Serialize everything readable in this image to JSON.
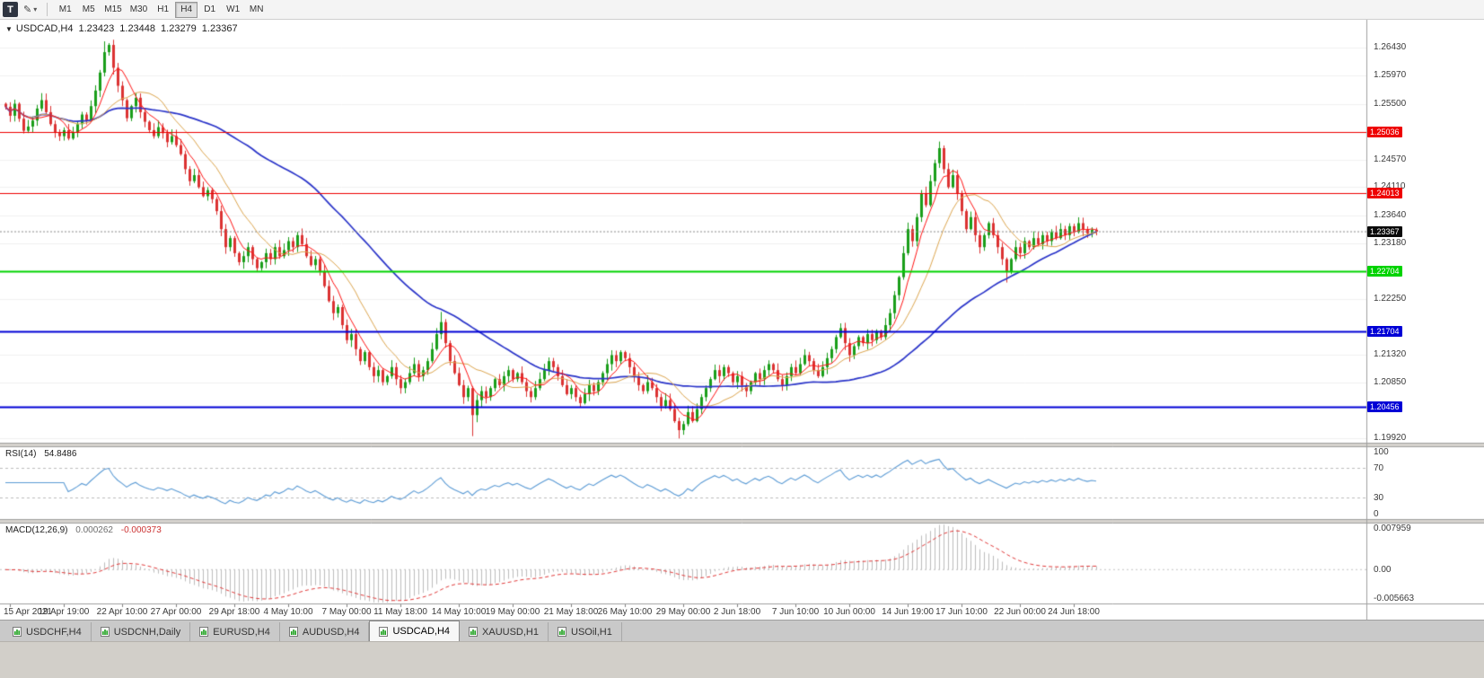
{
  "colors": {
    "bull": "#1a9e1a",
    "bear": "#db3232",
    "rsi": "#5b9bd5",
    "macd_hist": "#bdbdbd",
    "macd_signal": "#e23b3b",
    "accent_red": "#ee0000",
    "accent_green": "#00d300",
    "accent_blue": "#0000d6",
    "tag_black": "#0a0a0a"
  },
  "toolbar": {
    "window_icon": "T",
    "draw_tool_icon": "✎",
    "timeframes": [
      "M1",
      "M5",
      "M15",
      "M30",
      "H1",
      "H4",
      "D1",
      "W1",
      "MN"
    ],
    "active_timeframe": "H4"
  },
  "chart": {
    "symbol": "USDCAD,H4",
    "ohlc": {
      "open": "1.23423",
      "high": "1.23448",
      "low": "1.23279",
      "close": "1.23367"
    },
    "scale": {
      "max": 1.269,
      "min": 1.1985
    },
    "y_ticks": [
      {
        "p": 1.2643,
        "label": "1.26430"
      },
      {
        "p": 1.2597,
        "label": "1.25970"
      },
      {
        "p": 1.255,
        "label": "1.25500"
      },
      {
        "p": 1.2457,
        "label": "1.24570"
      },
      {
        "p": 1.2411,
        "label": "1.24110"
      },
      {
        "p": 1.2364,
        "label": "1.23640"
      },
      {
        "p": 1.2318,
        "label": "1.23180"
      },
      {
        "p": 1.2225,
        "label": "1.22250"
      },
      {
        "p": 1.2132,
        "label": "1.21320"
      },
      {
        "p": 1.2085,
        "label": "1.20850"
      },
      {
        "p": 1.1992,
        "label": "1.19920"
      }
    ],
    "hlines": [
      {
        "price": 1.25036,
        "label": "1.25036",
        "color": "#ee0000",
        "width": 1.2
      },
      {
        "price": 1.24013,
        "label": "1.24013",
        "color": "#ee0000",
        "width": 1.2
      },
      {
        "price": 1.22704,
        "label": "1.22704",
        "color": "#00d300",
        "width": 2
      },
      {
        "price": 1.21704,
        "label": "1.21704",
        "color": "#0000d6",
        "width": 2
      },
      {
        "price": 1.20456,
        "label": "1.20456",
        "color": "#0000d6",
        "width": 2
      }
    ],
    "current_price": {
      "price": 1.23367,
      "label": "1.23367"
    },
    "time_labels": [
      "15 Apr 2021",
      "19 Apr 19:00",
      "22 Apr 10:00",
      "27 Apr 00:00",
      "29 Apr 18:00",
      "4 May 10:00",
      "7 May 00:00",
      "11 May 18:00",
      "14 May 10:00",
      "19 May 00:00",
      "21 May 18:00",
      "26 May 10:00",
      "29 May 00:00",
      "2 Jun 18:00",
      "7 Jun 10:00",
      "10 Jun 00:00",
      "14 Jun 19:00",
      "17 Jun 10:00",
      "22 Jun 00:00",
      "24 Jun 18:00"
    ]
  },
  "rsi": {
    "label": "RSI(14)",
    "value": "54.8486",
    "period": 14,
    "levels": [
      {
        "v": 100,
        "label": "100"
      },
      {
        "v": 70,
        "label": "70",
        "dashed": true
      },
      {
        "v": 30,
        "label": "30",
        "dashed": true
      },
      {
        "v": 0,
        "label": "0"
      }
    ]
  },
  "macd": {
    "label": "MACD(12,26,9)",
    "value_main": "0.000262",
    "value_signal": "-0.000373",
    "fast": 12,
    "slow": 26,
    "signal": 9,
    "scale": {
      "max": 0.0086,
      "min": -0.0062
    },
    "axis": [
      {
        "v": 0.007959,
        "label": "0.007959"
      },
      {
        "v": 0,
        "label": "0.00"
      },
      {
        "v": -0.005663,
        "label": "-0.005663"
      }
    ]
  },
  "tabs": [
    {
      "label": "USDCHF,H4",
      "active": false
    },
    {
      "label": "USDCNH,Daily",
      "active": false
    },
    {
      "label": "EURUSD,H4",
      "active": false
    },
    {
      "label": "AUDUSD,H4",
      "active": false
    },
    {
      "label": "USDCAD,H4",
      "active": true
    },
    {
      "label": "XAUUSD,H1",
      "active": false
    },
    {
      "label": "USOil,H1",
      "active": false
    }
  ],
  "chart_data": {
    "type": "candlestick",
    "symbol": "USDCAD",
    "timeframe": "H4",
    "title": "USDCAD,H4",
    "ylim": [
      1.1985,
      1.269
    ],
    "first_open": 1.255,
    "closes": [
      1.2545,
      1.253,
      1.255,
      1.2525,
      1.2505,
      1.2512,
      1.2522,
      1.2542,
      1.2556,
      1.2536,
      1.2516,
      1.2502,
      1.2496,
      1.2506,
      1.2492,
      1.2502,
      1.2516,
      1.2532,
      1.2522,
      1.2546,
      1.2572,
      1.2602,
      1.2636,
      1.2648,
      1.261,
      1.258,
      1.2556,
      1.2526,
      1.2546,
      1.256,
      1.2536,
      1.252,
      1.2506,
      1.2496,
      1.2511,
      1.2501,
      1.2486,
      1.2496,
      1.2481,
      1.2466,
      1.2441,
      1.2421,
      1.2431,
      1.2411,
      1.2396,
      1.2406,
      1.2391,
      1.2371,
      1.2341,
      1.2311,
      1.2326,
      1.2301,
      1.2286,
      1.2296,
      1.2311,
      1.2291,
      1.2276,
      1.2286,
      1.2301,
      1.2291,
      1.2311,
      1.2296,
      1.2306,
      1.2321,
      1.2311,
      1.2331,
      1.2316,
      1.2296,
      1.2281,
      1.2291,
      1.2271,
      1.2246,
      1.2221,
      1.2201,
      1.2211,
      1.2181,
      1.2156,
      1.2166,
      1.2141,
      1.2121,
      1.2136,
      1.2111,
      1.2096,
      1.2106,
      1.2086,
      1.2096,
      1.2111,
      1.2091,
      1.2076,
      1.2086,
      1.2101,
      1.2116,
      1.2096,
      1.2106,
      1.2121,
      1.2141,
      1.2166,
      1.2186,
      1.2151,
      1.2121,
      1.2101,
      1.2081,
      1.2061,
      1.2076,
      1.2031,
      1.2056,
      1.2071,
      1.2061,
      1.2076,
      1.2091,
      1.2081,
      1.2096,
      1.2106,
      1.2091,
      1.2101,
      1.2086,
      1.2071,
      1.2061,
      1.2076,
      1.2091,
      1.2106,
      1.2121,
      1.2111,
      1.2096,
      1.2081,
      1.2066,
      1.2076,
      1.2061,
      1.2051,
      1.2066,
      1.2081,
      1.2071,
      1.2086,
      1.2101,
      1.2116,
      1.2131,
      1.2121,
      1.2136,
      1.2126,
      1.2111,
      1.2096,
      1.2081,
      1.2071,
      1.2086,
      1.2076,
      1.2061,
      1.2046,
      1.2056,
      1.2041,
      1.2021,
      1.2006,
      1.2016,
      1.2036,
      1.2021,
      1.2041,
      1.2061,
      1.2076,
      1.2091,
      1.2106,
      1.2096,
      1.2111,
      1.2101,
      1.2086,
      1.2096,
      1.2081,
      1.2071,
      1.2086,
      1.2101,
      1.2091,
      1.2106,
      1.2116,
      1.2106,
      1.2091,
      1.2081,
      1.2096,
      1.2111,
      1.2101,
      1.2116,
      1.2131,
      1.2121,
      1.2106,
      1.2096,
      1.2111,
      1.2126,
      1.2141,
      1.2161,
      1.2176,
      1.2151,
      1.2131,
      1.2146,
      1.2161,
      1.2151,
      1.2166,
      1.2156,
      1.2171,
      1.2161,
      1.2181,
      1.2201,
      1.2231,
      1.2261,
      1.2301,
      1.2341,
      1.2321,
      1.2361,
      1.2401,
      1.2381,
      1.2421,
      1.2451,
      1.2476,
      1.2441,
      1.2411,
      1.2431,
      1.2401,
      1.2371,
      1.2341,
      1.2361,
      1.2331,
      1.2311,
      1.2331,
      1.2351,
      1.2331,
      1.2311,
      1.2291,
      1.2271,
      1.2291,
      1.2311,
      1.2301,
      1.2321,
      1.2311,
      1.2326,
      1.2316,
      1.2331,
      1.2321,
      1.2336,
      1.2326,
      1.2341,
      1.2331,
      1.2346,
      1.2336,
      1.2351,
      1.2341,
      1.2334,
      1.234,
      1.23367
    ],
    "spikes": {
      "22": {
        "h": 1.2654
      },
      "23": {
        "h": 1.2651
      },
      "97": {
        "h": 1.2203
      },
      "104": {
        "l": 1.1996
      },
      "150": {
        "l": 1.1992
      },
      "186": {
        "h": 1.2184
      },
      "208": {
        "h": 1.2487
      },
      "223": {
        "l": 1.2252
      }
    },
    "moving_averages": [
      {
        "period": 6,
        "color": "#ff1414",
        "width": 1
      },
      {
        "period": 14,
        "color": "#ddA64f",
        "width": 1
      },
      {
        "period": 48,
        "color": "#2a34c9",
        "width": 1.7
      }
    ]
  }
}
